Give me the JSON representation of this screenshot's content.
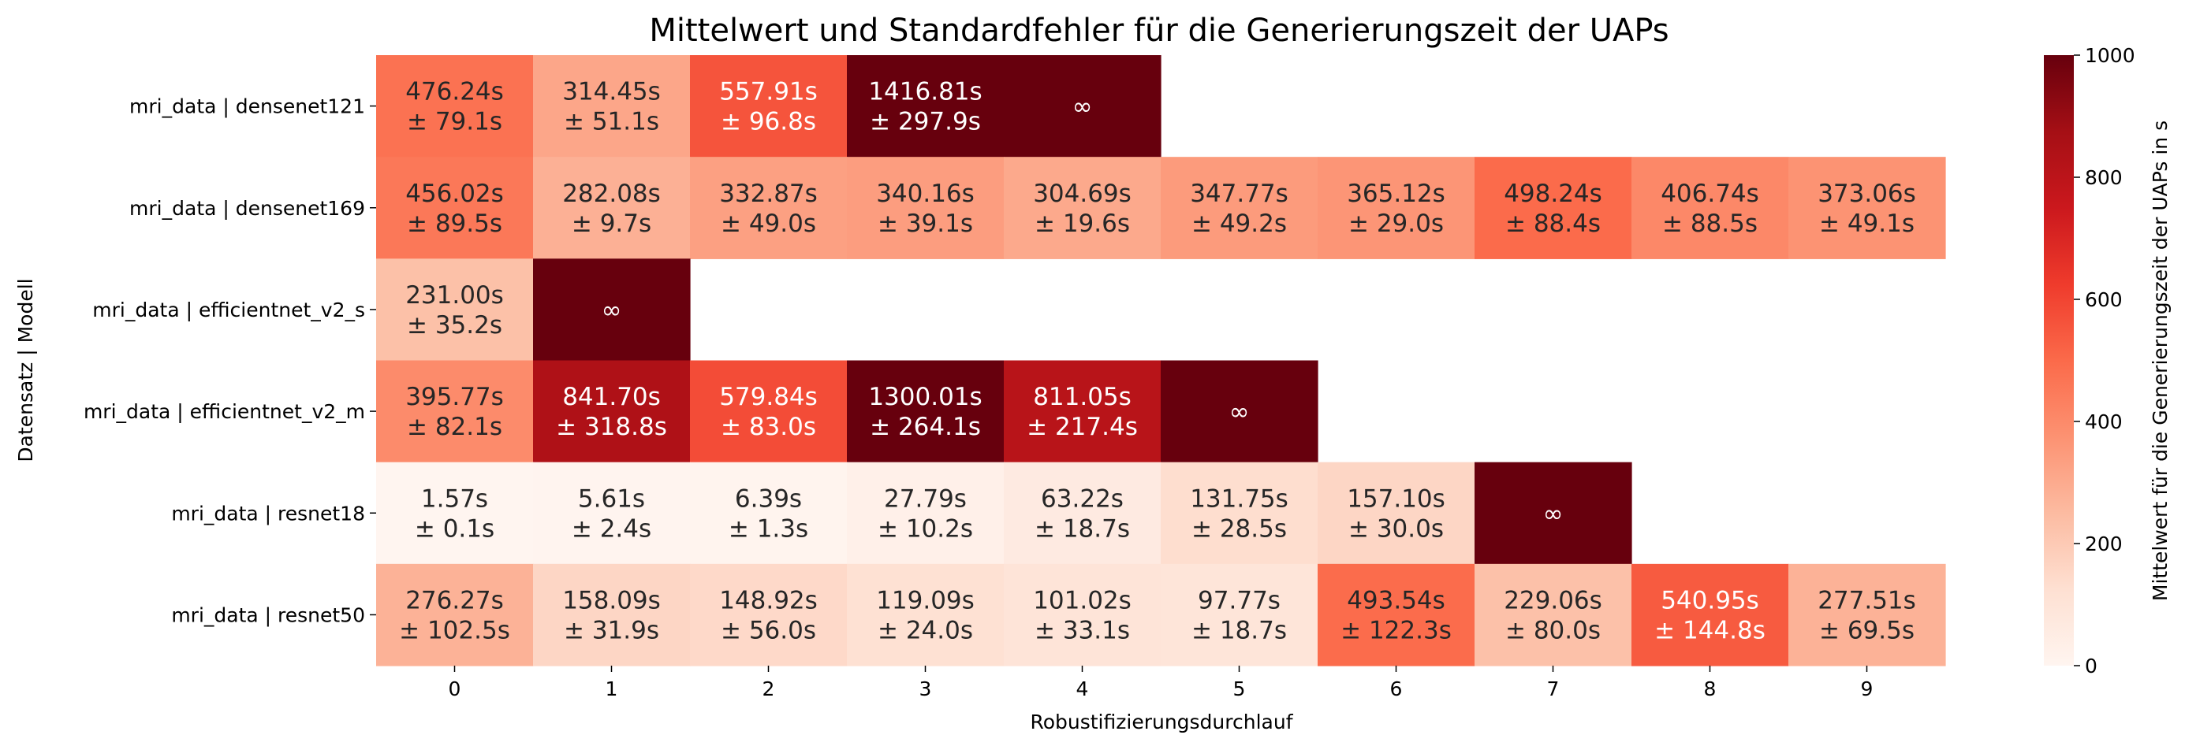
{
  "chart_data": {
    "type": "heatmap",
    "title": "Mittelwert und Standardfehler für die Generierungszeit der UAPs",
    "xlabel": "Robustifizierungsdurchlauf",
    "ylabel": "Datensatz | Modell",
    "x": [
      "0",
      "1",
      "2",
      "3",
      "4",
      "5",
      "6",
      "7",
      "8",
      "9"
    ],
    "y": [
      "mri_data | densenet121",
      "mri_data | densenet169",
      "mri_data | efficientnet_v2_s",
      "mri_data | efficientnet_v2_m",
      "mri_data | resnet18",
      "mri_data | resnet50"
    ],
    "values": [
      [
        476.24,
        314.45,
        557.91,
        1416.81,
        "inf",
        null,
        null,
        null,
        null,
        null
      ],
      [
        456.02,
        282.08,
        332.87,
        340.16,
        304.69,
        347.77,
        365.12,
        498.24,
        406.74,
        373.06
      ],
      [
        231.0,
        "inf",
        null,
        null,
        null,
        null,
        null,
        null,
        null,
        null
      ],
      [
        395.77,
        841.7,
        579.84,
        1300.01,
        811.05,
        "inf",
        null,
        null,
        null,
        null
      ],
      [
        1.57,
        5.61,
        6.39,
        27.79,
        63.22,
        131.75,
        157.1,
        "inf",
        null,
        null
      ],
      [
        276.27,
        158.09,
        148.92,
        119.09,
        101.02,
        97.77,
        493.54,
        229.06,
        540.95,
        277.51
      ]
    ],
    "labels": [
      [
        "476.24s\n± 79.1s",
        "314.45s\n± 51.1s",
        "557.91s\n± 96.8s",
        "1416.81s\n± 297.9s",
        "∞",
        "",
        "",
        "",
        "",
        ""
      ],
      [
        "456.02s\n± 89.5s",
        "282.08s\n± 9.7s",
        "332.87s\n± 49.0s",
        "340.16s\n± 39.1s",
        "304.69s\n± 19.6s",
        "347.77s\n± 49.2s",
        "365.12s\n± 29.0s",
        "498.24s\n± 88.4s",
        "406.74s\n± 88.5s",
        "373.06s\n± 49.1s"
      ],
      [
        "231.00s\n± 35.2s",
        "∞",
        "",
        "",
        "",
        "",
        "",
        "",
        "",
        ""
      ],
      [
        "395.77s\n± 82.1s",
        "841.70s\n± 318.8s",
        "579.84s\n± 83.0s",
        "1300.01s\n± 264.1s",
        "811.05s\n± 217.4s",
        "∞",
        "",
        "",
        "",
        ""
      ],
      [
        "1.57s\n± 0.1s",
        "5.61s\n± 2.4s",
        "6.39s\n± 1.3s",
        "27.79s\n± 10.2s",
        "63.22s\n± 18.7s",
        "131.75s\n± 28.5s",
        "157.10s\n± 30.0s",
        "∞",
        "",
        ""
      ],
      [
        "276.27s\n± 102.5s",
        "158.09s\n± 31.9s",
        "148.92s\n± 56.0s",
        "119.09s\n± 24.0s",
        "101.02s\n± 33.1s",
        "97.77s\n± 18.7s",
        "493.54s\n± 122.3s",
        "229.06s\n± 80.0s",
        "540.95s\n± 144.8s",
        "277.51s\n± 69.5s"
      ]
    ],
    "colorbar": {
      "label": "Mittelwert für die Generierungszeit der UAPs in s",
      "min": 0,
      "max": 1000,
      "ticks": [
        "0",
        "200",
        "400",
        "600",
        "800",
        "1000"
      ],
      "colormap": "Reds"
    },
    "grid": false,
    "colors": {
      "scale": [
        "#fff5f0",
        "#fee0d2",
        "#fcbba1",
        "#fc9272",
        "#fb6a4a",
        "#ef3b2c",
        "#cb181d",
        "#a50f15",
        "#67000d"
      ],
      "text_dark": "#262626",
      "text_light": "#ffffff"
    }
  }
}
